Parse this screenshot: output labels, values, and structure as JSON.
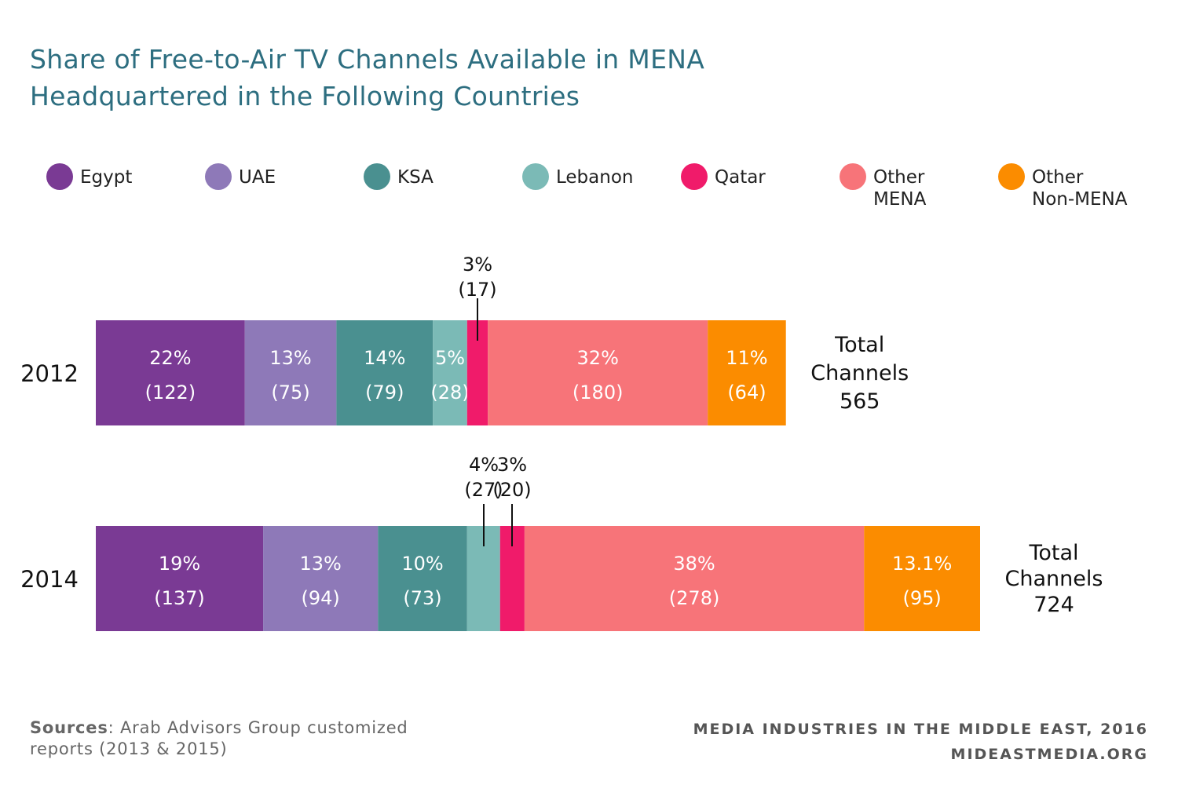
{
  "chart_data": {
    "type": "bar",
    "orientation": "horizontal",
    "stacked": true,
    "title_line1": "Share of Free-to-Air TV Channels Available in MENA",
    "title_line2": "Headquartered in the Following Countries",
    "legend_position": "top",
    "series": [
      {
        "name": "Egypt",
        "color": "#7a3a94"
      },
      {
        "name": "UAE",
        "color": "#8e79b8"
      },
      {
        "name": "KSA",
        "color": "#4a9090"
      },
      {
        "name": "Lebanon",
        "color": "#7bbab6"
      },
      {
        "name": "Qatar",
        "color": "#f01b6a"
      },
      {
        "name": "Other MENA",
        "color": "#f77479"
      },
      {
        "name": "Other Non-MENA",
        "color": "#fb8c00"
      }
    ],
    "legend_labels": [
      [
        "Egypt"
      ],
      [
        "UAE"
      ],
      [
        "KSA"
      ],
      [
        "Lebanon"
      ],
      [
        "Qatar"
      ],
      [
        "Other",
        "MENA"
      ],
      [
        "Other",
        "Non-MENA"
      ]
    ],
    "bars": [
      {
        "year": "2012",
        "total_lines": [
          "Total",
          "Channels",
          "565"
        ],
        "segments": [
          {
            "series": "Egypt",
            "count": 122,
            "pct_label": "22%",
            "count_label": "(122)",
            "placement": "inside"
          },
          {
            "series": "UAE",
            "count": 75,
            "pct_label": "13%",
            "count_label": "(75)",
            "placement": "inside"
          },
          {
            "series": "KSA",
            "count": 79,
            "pct_label": "14%",
            "count_label": "(79)",
            "placement": "inside"
          },
          {
            "series": "Lebanon",
            "count": 28,
            "pct_label": "5%",
            "count_label": "(28)",
            "placement": "inside"
          },
          {
            "series": "Qatar",
            "count": 17,
            "pct_label": "3%",
            "count_label": "(17)",
            "placement": "above"
          },
          {
            "series": "Other MENA",
            "count": 180,
            "pct_label": "32%",
            "count_label": "(180)",
            "placement": "inside"
          },
          {
            "series": "Other Non-MENA",
            "count": 64,
            "pct_label": "11%",
            "count_label": "(64)",
            "placement": "inside"
          }
        ]
      },
      {
        "year": "2014",
        "total_lines": [
          "Total",
          "Channels",
          "724"
        ],
        "segments": [
          {
            "series": "Egypt",
            "count": 137,
            "pct_label": "19%",
            "count_label": "(137)",
            "placement": "inside"
          },
          {
            "series": "UAE",
            "count": 94,
            "pct_label": "13%",
            "count_label": "(94)",
            "placement": "inside"
          },
          {
            "series": "KSA",
            "count": 73,
            "pct_label": "10%",
            "count_label": "(73)",
            "placement": "inside"
          },
          {
            "series": "Lebanon",
            "count": 27,
            "pct_label": "4%",
            "count_label": "(27)",
            "placement": "above"
          },
          {
            "series": "Qatar",
            "count": 20,
            "pct_label": "3%",
            "count_label": "(20)",
            "placement": "above"
          },
          {
            "series": "Other MENA",
            "count": 278,
            "pct_label": "38%",
            "count_label": "(278)",
            "placement": "inside"
          },
          {
            "series": "Other Non-MENA",
            "count": 95,
            "pct_label": "13.1%",
            "count_label": "(95)",
            "placement": "inside"
          }
        ]
      }
    ]
  },
  "footer": {
    "sources_label": "Sources",
    "sources_line1": ": Arab Advisors Group customized",
    "sources_line2": "reports (2013 & 2015)",
    "right_line1": "MEDIA INDUSTRIES IN THE MIDDLE EAST, 2016",
    "right_line2": "MIDEASTMEDIA.ORG"
  }
}
